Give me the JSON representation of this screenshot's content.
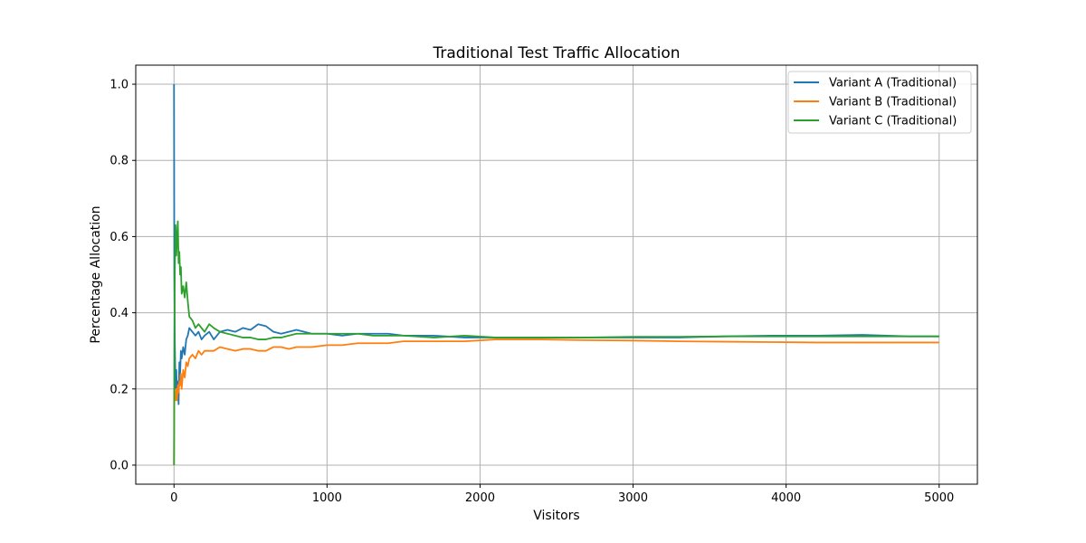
{
  "chart_data": {
    "type": "line",
    "title": "Traditional Test Traffic Allocation",
    "xlabel": "Visitors",
    "ylabel": "Percentage Allocation",
    "xlim": [
      -250,
      5250
    ],
    "ylim": [
      -0.05,
      1.05
    ],
    "xticks": [
      0,
      1000,
      2000,
      3000,
      4000,
      5000
    ],
    "xtick_labels": [
      "0",
      "1000",
      "2000",
      "3000",
      "4000",
      "5000"
    ],
    "yticks": [
      0.0,
      0.2,
      0.4,
      0.6,
      0.8,
      1.0
    ],
    "ytick_labels": [
      "0.0",
      "0.2",
      "0.4",
      "0.6",
      "0.8",
      "1.0"
    ],
    "grid": true,
    "legend_position": "top-right",
    "series": [
      {
        "name": "Variant A (Traditional)",
        "color": "#1f77b4",
        "x": [
          0,
          2,
          5,
          10,
          15,
          20,
          25,
          30,
          35,
          40,
          45,
          50,
          60,
          70,
          80,
          90,
          100,
          120,
          140,
          160,
          180,
          200,
          230,
          260,
          300,
          350,
          400,
          450,
          500,
          550,
          600,
          650,
          700,
          750,
          800,
          900,
          1000,
          1100,
          1200,
          1300,
          1400,
          1500,
          1700,
          1900,
          2100,
          2400,
          2700,
          3000,
          3300,
          3600,
          3900,
          4200,
          4500,
          4800,
          5000
        ],
        "y": [
          1.0,
          0.5,
          0.33,
          0.2,
          0.25,
          0.18,
          0.22,
          0.16,
          0.27,
          0.24,
          0.3,
          0.28,
          0.31,
          0.29,
          0.33,
          0.34,
          0.36,
          0.35,
          0.34,
          0.35,
          0.33,
          0.34,
          0.35,
          0.33,
          0.35,
          0.355,
          0.35,
          0.36,
          0.355,
          0.37,
          0.365,
          0.35,
          0.345,
          0.35,
          0.355,
          0.345,
          0.345,
          0.34,
          0.345,
          0.345,
          0.345,
          0.34,
          0.34,
          0.335,
          0.335,
          0.335,
          0.335,
          0.335,
          0.335,
          0.338,
          0.34,
          0.34,
          0.342,
          0.338,
          0.338
        ]
      },
      {
        "name": "Variant B (Traditional)",
        "color": "#ff7f0e",
        "x": [
          0,
          2,
          5,
          10,
          15,
          20,
          25,
          30,
          35,
          40,
          45,
          50,
          60,
          70,
          80,
          90,
          100,
          120,
          140,
          160,
          180,
          200,
          230,
          260,
          300,
          350,
          400,
          450,
          500,
          550,
          600,
          650,
          700,
          750,
          800,
          900,
          1000,
          1100,
          1200,
          1300,
          1400,
          1500,
          1700,
          1900,
          2100,
          2400,
          2700,
          3000,
          3300,
          3600,
          3900,
          4200,
          4500,
          4800,
          5000
        ],
        "y": [
          0.0,
          0.2,
          0.18,
          0.17,
          0.2,
          0.17,
          0.21,
          0.19,
          0.22,
          0.21,
          0.24,
          0.2,
          0.25,
          0.23,
          0.27,
          0.26,
          0.28,
          0.29,
          0.28,
          0.3,
          0.29,
          0.3,
          0.3,
          0.3,
          0.31,
          0.305,
          0.3,
          0.305,
          0.305,
          0.3,
          0.3,
          0.31,
          0.31,
          0.305,
          0.31,
          0.31,
          0.315,
          0.315,
          0.32,
          0.32,
          0.32,
          0.325,
          0.325,
          0.325,
          0.33,
          0.33,
          0.328,
          0.327,
          0.325,
          0.324,
          0.323,
          0.322,
          0.322,
          0.322,
          0.322
        ]
      },
      {
        "name": "Variant C (Traditional)",
        "color": "#2ca02c",
        "x": [
          0,
          2,
          5,
          10,
          15,
          20,
          25,
          30,
          35,
          40,
          45,
          50,
          60,
          70,
          80,
          90,
          100,
          120,
          140,
          160,
          180,
          200,
          230,
          260,
          300,
          350,
          400,
          450,
          500,
          550,
          600,
          650,
          700,
          750,
          800,
          900,
          1000,
          1100,
          1200,
          1300,
          1400,
          1500,
          1700,
          1900,
          2100,
          2400,
          2700,
          3000,
          3300,
          3600,
          3900,
          4200,
          4500,
          4800,
          5000
        ],
        "y": [
          0.0,
          0.3,
          0.5,
          0.63,
          0.55,
          0.6,
          0.64,
          0.53,
          0.56,
          0.5,
          0.52,
          0.45,
          0.47,
          0.44,
          0.48,
          0.43,
          0.39,
          0.38,
          0.36,
          0.37,
          0.36,
          0.35,
          0.37,
          0.36,
          0.35,
          0.345,
          0.34,
          0.335,
          0.335,
          0.33,
          0.33,
          0.335,
          0.335,
          0.34,
          0.345,
          0.345,
          0.345,
          0.345,
          0.345,
          0.34,
          0.34,
          0.34,
          0.335,
          0.34,
          0.335,
          0.335,
          0.335,
          0.337,
          0.337,
          0.338,
          0.338,
          0.338,
          0.338,
          0.338,
          0.338
        ]
      }
    ]
  }
}
